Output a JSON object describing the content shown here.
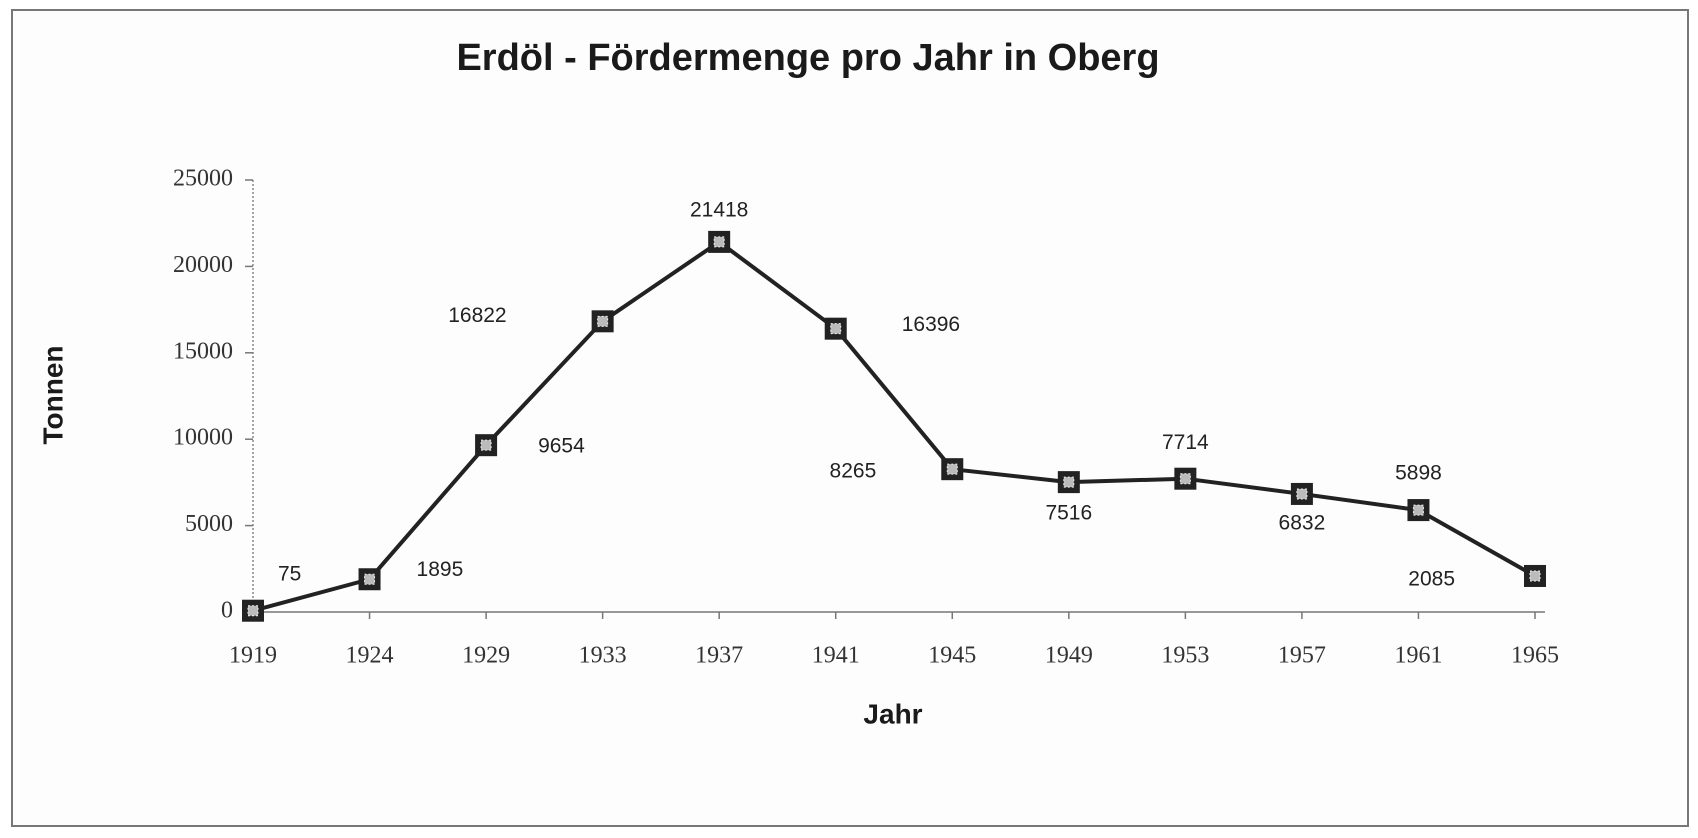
{
  "chart_data": {
    "type": "line",
    "title": "Erdöl - Fördermenge pro Jahr in Oberg",
    "x_label": "Jahr",
    "y_label": "Tonnen",
    "categories": [
      "1919",
      "1924",
      "1929",
      "1933",
      "1937",
      "1941",
      "1945",
      "1949",
      "1953",
      "1957",
      "1961",
      "1965"
    ],
    "values": [
      75,
      1895,
      9654,
      16822,
      21418,
      16396,
      8265,
      7516,
      7714,
      6832,
      5898,
      2085
    ],
    "color": "#222222",
    "ylim": [
      0,
      25000
    ],
    "yticks": [
      0,
      5000,
      10000,
      15000,
      20000,
      25000
    ],
    "grid": false
  }
}
